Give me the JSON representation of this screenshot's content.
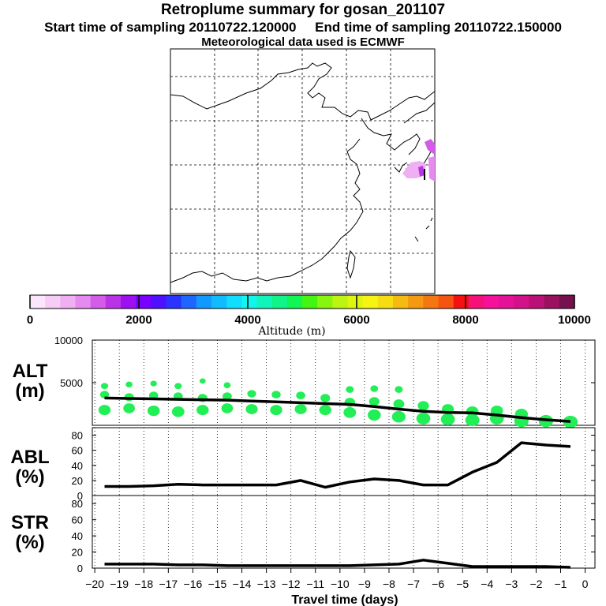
{
  "header": {
    "title": "Retroplume summary for gosan_201107",
    "start_label": "Start time of sampling 20110722.120000",
    "end_label": "End time of sampling 20110722.150000",
    "met_label": "Meteorological data used is ECMWF"
  },
  "map": {
    "description_none": ""
  },
  "colorbar": {
    "title": "Altitude (m)",
    "ticks": [
      "0",
      "2000",
      "4000",
      "6000",
      "8000",
      "10000"
    ],
    "colors": [
      "#fbe6fb",
      "#f7ccf7",
      "#f0aef3",
      "#e58aee",
      "#d35ce8",
      "#bb33e6",
      "#9b11f2",
      "#7a00ff",
      "#4e10ff",
      "#2a33ff",
      "#1e66ff",
      "#1199ff",
      "#11bbff",
      "#11ddff",
      "#11f5ee",
      "#11f5bb",
      "#11f588",
      "#11f555",
      "#44f511",
      "#88f511",
      "#bbf511",
      "#ddf511",
      "#f5f511",
      "#f5dd11",
      "#f5bb11",
      "#f59911",
      "#f57711",
      "#f55511",
      "#f51111",
      "#f51177",
      "#f51199",
      "#e51199",
      "#d31188",
      "#bb1177",
      "#99115f",
      "#77114e"
    ]
  },
  "panels": {
    "alt": {
      "label1": "ALT",
      "label2": "(m)"
    },
    "abl": {
      "label1": "ABL",
      "label2": "(%)"
    },
    "str": {
      "label1": "STR",
      "label2": "(%)"
    }
  },
  "xaxis_label": "Travel time (days)",
  "chart_data": [
    {
      "type": "line",
      "name": "ALT",
      "ylabel": "ALT (m)",
      "ylim": [
        0,
        10000
      ],
      "yticks": [
        "5000",
        "10000"
      ],
      "x": [
        -19.6,
        -18.6,
        -17.6,
        -16.6,
        -15.6,
        -14.6,
        -13.6,
        -12.6,
        -11.6,
        -10.6,
        -9.6,
        -8.6,
        -7.6,
        -6.6,
        -5.6,
        -4.6,
        -3.6,
        -2.6,
        -1.6,
        -0.6
      ],
      "values": [
        3200,
        3150,
        3100,
        3050,
        3000,
        2950,
        2850,
        2750,
        2650,
        2550,
        2450,
        2200,
        1900,
        1650,
        1500,
        1450,
        1200,
        900,
        650,
        450
      ],
      "scatter": {
        "color": "#22ee55",
        "points": [
          [
            -19.6,
            1800
          ],
          [
            -19.6,
            3600
          ],
          [
            -19.6,
            4600
          ],
          [
            -18.6,
            2000
          ],
          [
            -18.6,
            3300
          ],
          [
            -18.6,
            4800
          ],
          [
            -17.6,
            1700
          ],
          [
            -17.6,
            3500
          ],
          [
            -17.6,
            4900
          ],
          [
            -16.6,
            1600
          ],
          [
            -16.6,
            3400
          ],
          [
            -16.6,
            4600
          ],
          [
            -15.6,
            1800
          ],
          [
            -15.6,
            3200
          ],
          [
            -15.6,
            5200
          ],
          [
            -14.6,
            2000
          ],
          [
            -14.6,
            3400
          ],
          [
            -14.6,
            4700
          ],
          [
            -13.6,
            1900
          ],
          [
            -13.6,
            3700
          ],
          [
            -12.6,
            1800
          ],
          [
            -12.6,
            3600
          ],
          [
            -11.6,
            1900
          ],
          [
            -11.6,
            3500
          ],
          [
            -10.6,
            1800
          ],
          [
            -10.6,
            3200
          ],
          [
            -9.6,
            1500
          ],
          [
            -9.6,
            2700
          ],
          [
            -9.6,
            4200
          ],
          [
            -8.6,
            1200
          ],
          [
            -8.6,
            2800
          ],
          [
            -8.6,
            4300
          ],
          [
            -7.6,
            1000
          ],
          [
            -7.6,
            2500
          ],
          [
            -7.6,
            4200
          ],
          [
            -6.6,
            800
          ],
          [
            -6.6,
            2300
          ],
          [
            -5.6,
            700
          ],
          [
            -5.6,
            1900
          ],
          [
            -4.6,
            600
          ],
          [
            -4.6,
            1600
          ],
          [
            -3.6,
            800
          ],
          [
            -3.6,
            1700
          ],
          [
            -2.6,
            500
          ],
          [
            -2.6,
            1300
          ],
          [
            -1.6,
            500
          ],
          [
            -0.6,
            400
          ]
        ]
      }
    },
    {
      "type": "line",
      "name": "ABL",
      "ylabel": "ABL (%)",
      "ylim": [
        0,
        90
      ],
      "yticks": [
        "0",
        "20",
        "40",
        "60",
        "80"
      ],
      "x": [
        -19.6,
        -18.6,
        -17.6,
        -16.6,
        -15.6,
        -14.6,
        -13.6,
        -12.6,
        -11.6,
        -10.6,
        -9.6,
        -8.6,
        -7.6,
        -6.6,
        -5.6,
        -4.6,
        -3.6,
        -2.6,
        -1.6,
        -0.6
      ],
      "values": [
        12,
        12,
        13,
        15,
        14,
        14,
        14,
        14,
        20,
        11,
        18,
        22,
        20,
        14,
        14,
        31,
        44,
        70,
        67,
        65
      ]
    },
    {
      "type": "line",
      "name": "STR",
      "ylabel": "STR (%)",
      "ylim": [
        0,
        90
      ],
      "yticks": [
        "0",
        "20",
        "40",
        "60",
        "80"
      ],
      "x": [
        -19.6,
        -18.6,
        -17.6,
        -16.6,
        -15.6,
        -14.6,
        -13.6,
        -12.6,
        -11.6,
        -10.6,
        -9.6,
        -8.6,
        -7.6,
        -6.6,
        -5.6,
        -4.6,
        -3.6,
        -2.6,
        -1.6,
        -0.6
      ],
      "values": [
        5,
        5,
        5,
        4,
        4,
        3,
        3,
        3,
        3,
        3,
        3,
        4,
        5,
        10,
        6,
        2,
        2,
        2,
        2,
        1
      ]
    }
  ],
  "xaxis": {
    "xlim": [
      -20.1,
      0.4
    ],
    "ticks": [
      -20,
      -19,
      -18,
      -17,
      -16,
      -15,
      -14,
      -13,
      -12,
      -11,
      -10,
      -9,
      -8,
      -7,
      -6,
      -5,
      -4,
      -3,
      -2,
      -1,
      0
    ],
    "tick_labels": [
      "−20",
      "−19",
      "−18",
      "−17",
      "−16",
      "−15",
      "−14",
      "−13",
      "−12",
      "−11",
      "−10",
      "−9",
      "−8",
      "−7",
      "−6",
      "−5",
      "−4",
      "−3",
      "−2",
      "−1",
      "0"
    ]
  }
}
